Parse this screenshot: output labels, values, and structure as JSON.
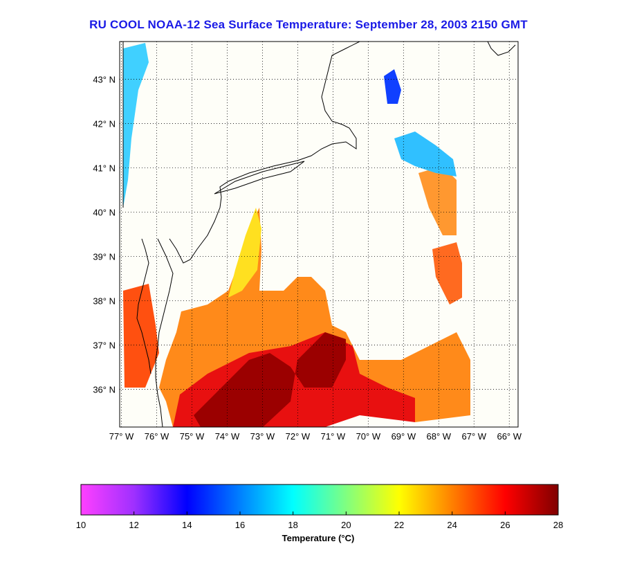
{
  "title": "RU COOL  NOAA-12  Sea Surface Temperature:  September 28, 2003 2150 GMT",
  "map": {
    "lon_range": [
      -77.05,
      -65.75
    ],
    "lat_range": [
      35.15,
      43.85
    ],
    "lat_ticks": [
      {
        "value": 36,
        "label": "36° N"
      },
      {
        "value": 37,
        "label": "37° N"
      },
      {
        "value": 38,
        "label": "38° N"
      },
      {
        "value": 39,
        "label": "39° N"
      },
      {
        "value": 40,
        "label": "40° N"
      },
      {
        "value": 41,
        "label": "41° N"
      },
      {
        "value": 42,
        "label": "42° N"
      },
      {
        "value": 43,
        "label": "43° N"
      }
    ],
    "lon_ticks": [
      {
        "value": -77,
        "label": "77° W"
      },
      {
        "value": -76,
        "label": "76° W"
      },
      {
        "value": -75,
        "label": "75° W"
      },
      {
        "value": -74,
        "label": "74° W"
      },
      {
        "value": -73,
        "label": "73° W"
      },
      {
        "value": -72,
        "label": "72° W"
      },
      {
        "value": -71,
        "label": "71° W"
      },
      {
        "value": -70,
        "label": "70° W"
      },
      {
        "value": -69,
        "label": "69° W"
      },
      {
        "value": -68,
        "label": "68° W"
      },
      {
        "value": -67,
        "label": "67° W"
      },
      {
        "value": -66,
        "label": "66° W"
      }
    ],
    "grid": true,
    "background_color": "#fefef8",
    "coastline_color": "#000000"
  },
  "colorbar": {
    "min": 10,
    "max": 28,
    "ticks": [
      "10",
      "12",
      "14",
      "16",
      "18",
      "20",
      "22",
      "24",
      "26",
      "28"
    ],
    "label": "Temperature (°C)",
    "colors": [
      "#ff40ff",
      "#9f30ff",
      "#0000ff",
      "#0080ff",
      "#00ffff",
      "#80ff80",
      "#ffff00",
      "#ff8000",
      "#ff0000",
      "#800000"
    ]
  }
}
